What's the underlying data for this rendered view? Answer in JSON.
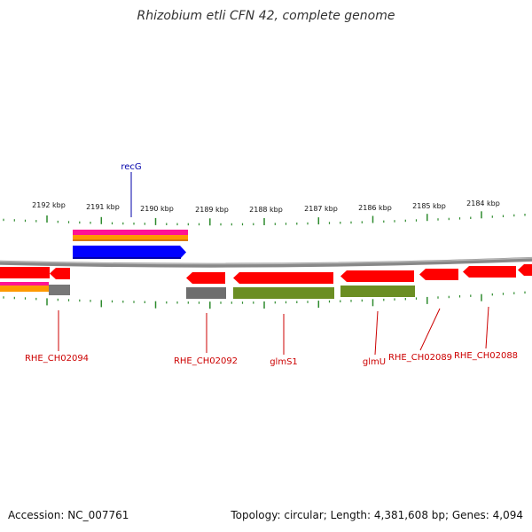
{
  "title": "Rhizobium etli CFN 42, complete genome",
  "footer": {
    "accession": "Accession: NC_007761",
    "topology": "Topology: circular; Length: 4,381,608 bp; Genes: 4,094"
  },
  "ticks": [
    "2192 kbp",
    "2191 kbp",
    "2190 kbp",
    "2189 kbp",
    "2188 kbp",
    "2187 kbp",
    "2186 kbp",
    "2185 kbp",
    "2184 kbp"
  ],
  "labels": {
    "top": [
      {
        "text": "recG",
        "color": "#0000aa"
      }
    ],
    "bottom": [
      {
        "text": "RHE_CH02094",
        "color": "#cc0000"
      },
      {
        "text": "RHE_CH02092",
        "color": "#cc0000"
      },
      {
        "text": "glmS1",
        "color": "#cc0000"
      },
      {
        "text": "glmU",
        "color": "#cc0000"
      },
      {
        "text": "RHE_CH02089",
        "color": "#cc0000"
      },
      {
        "text": "RHE_CH02088",
        "color": "#cc0000"
      }
    ]
  },
  "colors": {
    "backbone": "#808080",
    "tick": "#2e8b2e",
    "cds_forward": "#ff0000",
    "cds_reverse": "#ff0000",
    "gene_forward": "#0000ff",
    "gene_reverse": "#6b8e23",
    "gray_feature": "#777777",
    "magenta": "#ff1493",
    "orange": "#ff9900"
  }
}
